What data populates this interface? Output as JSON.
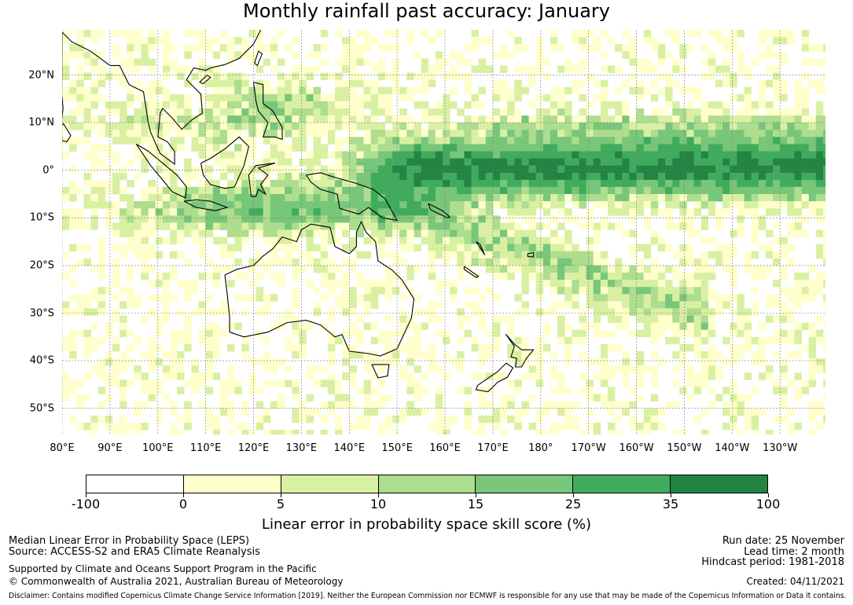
{
  "title": "Monthly rainfall past accuracy: January",
  "map": {
    "lat_labels": [
      "20°N",
      "10°N",
      "0°",
      "10°S",
      "20°S",
      "30°S",
      "40°S",
      "50°S"
    ],
    "lat_values": [
      20,
      10,
      0,
      -10,
      -20,
      -30,
      -40,
      -50
    ],
    "lon_labels": [
      "80°E",
      "90°E",
      "100°E",
      "110°E",
      "120°E",
      "130°E",
      "140°E",
      "150°E",
      "160°E",
      "170°E",
      "180°",
      "170°W",
      "160°W",
      "150°W",
      "140°W",
      "130°W"
    ],
    "lon_values": [
      80,
      90,
      100,
      110,
      120,
      130,
      140,
      150,
      160,
      170,
      180,
      190,
      200,
      210,
      220,
      230
    ],
    "lon_min": 80,
    "lon_max": 239.5,
    "lat_min": -55.5,
    "lat_max": 29.5
  },
  "colorbar": {
    "ticks": [
      "-100",
      "0",
      "5",
      "10",
      "15",
      "25",
      "35",
      "100"
    ],
    "colors": [
      "#ffffff",
      "#ffffcc",
      "#d9f0a3",
      "#addd8e",
      "#78c679",
      "#41ab5d",
      "#238443"
    ],
    "title": "Linear error in probability space skill score (%)"
  },
  "footer": {
    "left_line1": "Median Linear Error in Probability Space (LEPS)",
    "left_line2": "Source: ACCESS-S2 and ERA5 Climate Reanalysis",
    "left_line3": "Supported by Climate and Oceans Support Program in the Pacific",
    "left_line4": "© Commonwealth of Australia 2021, Australian Bureau of Meteorology",
    "right_line1": "Run date: 25 November",
    "right_line2": "Lead time: 2 month",
    "right_line3": "Hindcast period: 1981-2018",
    "right_line4": "Created: 04/11/2021",
    "disclaimer": "Disclaimer: Contains modified Copernicus Climate Change Service Information [2019]. Neither the European Commission nor ECMWF is responsible for any use that may be made of the Copernicus Information or Data it contains."
  }
}
